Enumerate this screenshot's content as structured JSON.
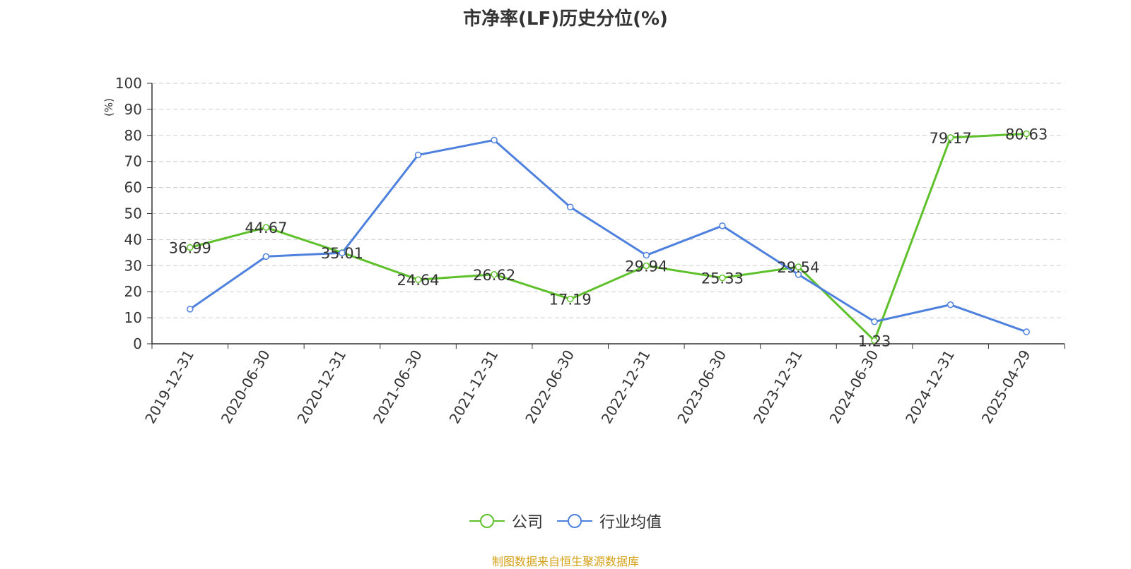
{
  "chart_data": {
    "type": "line",
    "title": "市净率(LF)历史分位(%)",
    "ylabel": "(%)",
    "ylim": [
      0,
      100
    ],
    "yticks": [
      "0",
      "10",
      "20",
      "30",
      "40",
      "50",
      "60",
      "70",
      "80",
      "90",
      "100"
    ],
    "grid": true,
    "legend_position": "bottom",
    "categories": [
      "2019-12-31",
      "2020-06-30",
      "2020-12-31",
      "2021-06-30",
      "2021-12-31",
      "2022-06-30",
      "2022-12-31",
      "2023-06-30",
      "2023-12-31",
      "2024-06-30",
      "2024-12-31",
      "2025-04-29"
    ],
    "series": [
      {
        "name": "公司",
        "color": "#5ec12b",
        "values": [
          36.99,
          44.67,
          35.01,
          24.64,
          26.62,
          17.19,
          29.94,
          25.33,
          29.54,
          1.23,
          79.17,
          80.63
        ],
        "labels": [
          "36.99",
          "44.67",
          "35.01",
          "24.64",
          "26.62",
          "17.19",
          "29.94",
          "25.33",
          "29.54",
          "1.23",
          "79.17",
          "80.63"
        ]
      },
      {
        "name": "行业均值",
        "color": "#4e80dd",
        "values": [
          13.3,
          33.5,
          34.9,
          72.5,
          78.2,
          52.5,
          34.0,
          45.3,
          26.6,
          8.5,
          15.0,
          4.6
        ]
      }
    ]
  },
  "footer": {
    "source": "制图数据来自恒生聚源数据库"
  }
}
